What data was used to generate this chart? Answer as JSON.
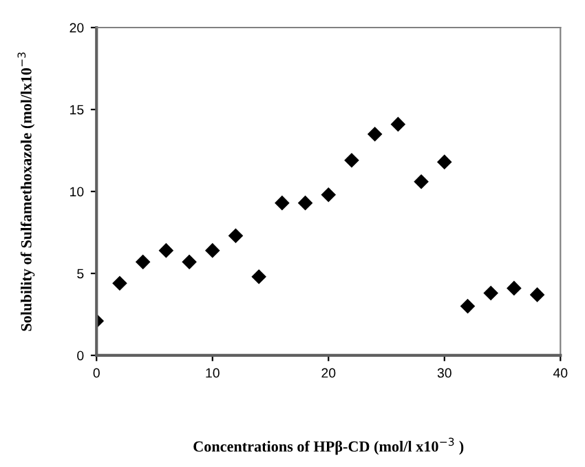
{
  "chart_data": {
    "type": "scatter",
    "xlabel": "Concentrations of HPβ-CD (mol/l x10$^{−3}$ )",
    "ylabel": "Solubility of Sulfamethoxazole (mol/lx10$^{−3}$",
    "x": [
      0,
      2,
      4,
      6,
      8,
      10,
      12,
      14,
      16,
      18,
      20,
      22,
      24,
      26,
      28,
      30,
      32,
      34,
      36,
      38
    ],
    "series": [
      {
        "color": "#000000",
        "values": [
          2.1,
          4.4,
          5.7,
          6.4,
          5.7,
          6.4,
          7.3,
          4.8,
          9.3,
          9.3,
          9.8,
          11.9,
          13.5,
          14.1,
          10.6,
          11.8,
          3.0,
          3.8,
          4.1,
          3.7
        ]
      }
    ],
    "xlim": [
      0,
      40
    ],
    "ylim": [
      0,
      20
    ],
    "xticks": [
      0,
      10,
      20,
      30,
      40
    ],
    "yticks": [
      0,
      5,
      10,
      15,
      20
    ],
    "marker": "diamond",
    "grid": false,
    "legend": false
  }
}
